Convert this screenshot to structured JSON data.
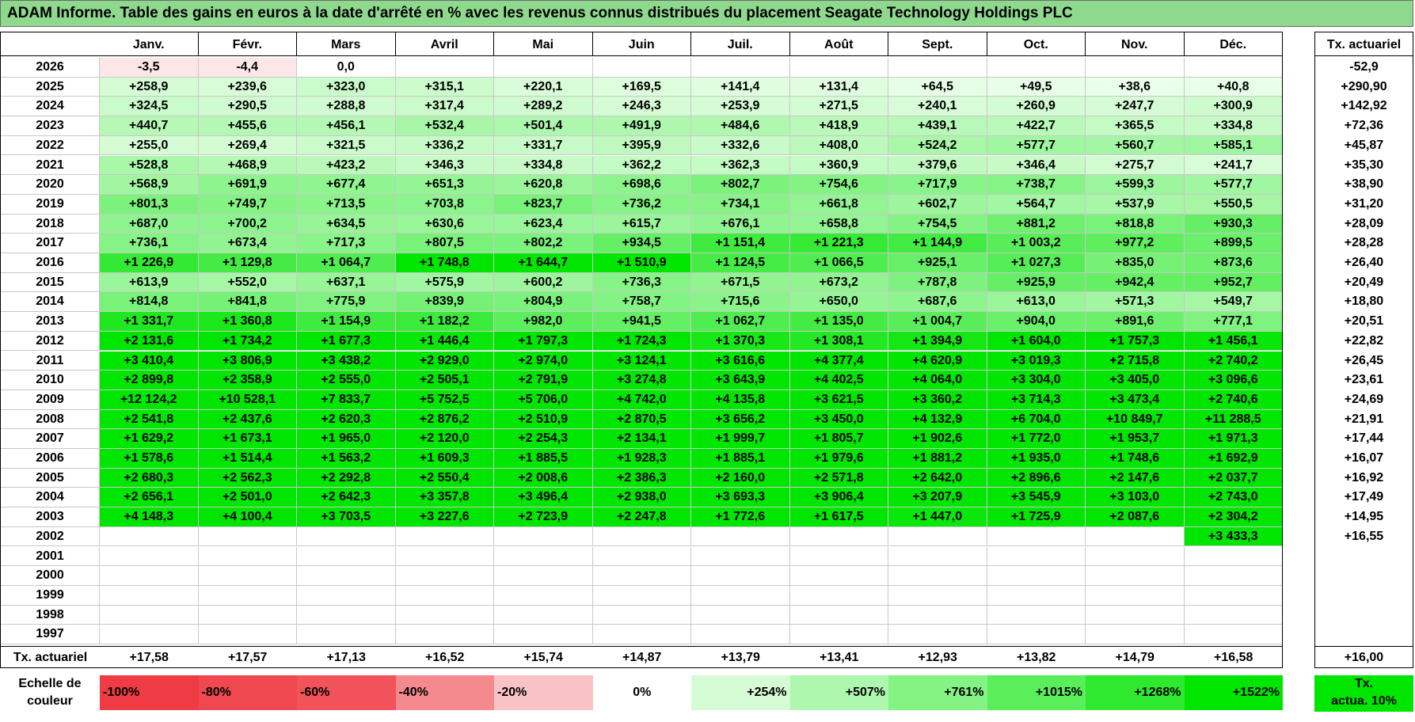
{
  "title": "ADAM Informe. Table des gains en euros à la date d'arrêté en % avec les revenus connus distribués du placement Seagate Technology Holdings PLC",
  "months": [
    "Janv.",
    "Févr.",
    "Mars",
    "Avril",
    "Mai",
    "Juin",
    "Juil.",
    "Août",
    "Sept.",
    "Oct.",
    "Nov.",
    "Déc."
  ],
  "tx_header": "Tx. actuariel",
  "rows": [
    {
      "year": "2026",
      "values": [
        "-3,5",
        "-4,4",
        "0,0",
        "",
        "",
        "",
        "",
        "",
        "",
        "",
        "",
        ""
      ],
      "tx": "-52,9"
    },
    {
      "year": "2025",
      "values": [
        "+258,9",
        "+239,6",
        "+323,0",
        "+315,1",
        "+220,1",
        "+169,5",
        "+141,4",
        "+131,4",
        "+64,5",
        "+49,5",
        "+38,6",
        "+40,8"
      ],
      "tx": "+290,90"
    },
    {
      "year": "2024",
      "values": [
        "+324,5",
        "+290,5",
        "+288,8",
        "+317,4",
        "+289,2",
        "+246,3",
        "+253,9",
        "+271,5",
        "+240,1",
        "+260,9",
        "+247,7",
        "+300,9"
      ],
      "tx": "+142,92"
    },
    {
      "year": "2023",
      "values": [
        "+440,7",
        "+455,6",
        "+456,1",
        "+532,4",
        "+501,4",
        "+491,9",
        "+484,6",
        "+418,9",
        "+439,1",
        "+422,7",
        "+365,5",
        "+334,8"
      ],
      "tx": "+72,36"
    },
    {
      "year": "2022",
      "values": [
        "+255,0",
        "+269,4",
        "+321,5",
        "+336,2",
        "+331,7",
        "+395,9",
        "+332,6",
        "+408,0",
        "+524,2",
        "+577,7",
        "+560,7",
        "+585,1"
      ],
      "tx": "+45,87"
    },
    {
      "year": "2021",
      "values": [
        "+528,8",
        "+468,9",
        "+423,2",
        "+346,3",
        "+334,8",
        "+362,2",
        "+362,3",
        "+360,9",
        "+379,6",
        "+346,4",
        "+275,7",
        "+241,7"
      ],
      "tx": "+35,30"
    },
    {
      "year": "2020",
      "values": [
        "+568,9",
        "+691,9",
        "+677,4",
        "+651,3",
        "+620,8",
        "+698,6",
        "+802,7",
        "+754,6",
        "+717,9",
        "+738,7",
        "+599,3",
        "+577,7"
      ],
      "tx": "+38,90"
    },
    {
      "year": "2019",
      "values": [
        "+801,3",
        "+749,7",
        "+713,5",
        "+703,8",
        "+823,7",
        "+736,2",
        "+734,1",
        "+661,8",
        "+602,7",
        "+564,7",
        "+537,9",
        "+550,5"
      ],
      "tx": "+31,20"
    },
    {
      "year": "2018",
      "values": [
        "+687,0",
        "+700,2",
        "+634,5",
        "+630,6",
        "+623,4",
        "+615,7",
        "+676,1",
        "+658,8",
        "+754,5",
        "+881,2",
        "+818,8",
        "+930,3"
      ],
      "tx": "+28,09"
    },
    {
      "year": "2017",
      "values": [
        "+736,1",
        "+673,4",
        "+717,3",
        "+807,5",
        "+802,2",
        "+934,5",
        "+1 151,4",
        "+1 221,3",
        "+1 144,9",
        "+1 003,2",
        "+977,2",
        "+899,5"
      ],
      "tx": "+28,28"
    },
    {
      "year": "2016",
      "values": [
        "+1 226,9",
        "+1 129,8",
        "+1 064,7",
        "+1 748,8",
        "+1 644,7",
        "+1 510,9",
        "+1 124,5",
        "+1 066,5",
        "+925,1",
        "+1 027,3",
        "+835,0",
        "+873,6"
      ],
      "tx": "+26,40"
    },
    {
      "year": "2015",
      "values": [
        "+613,9",
        "+552,0",
        "+637,1",
        "+575,9",
        "+600,2",
        "+736,3",
        "+671,5",
        "+673,2",
        "+787,8",
        "+925,9",
        "+942,4",
        "+952,7"
      ],
      "tx": "+20,49"
    },
    {
      "year": "2014",
      "values": [
        "+814,8",
        "+841,8",
        "+775,9",
        "+839,9",
        "+804,9",
        "+758,7",
        "+715,6",
        "+650,0",
        "+687,6",
        "+613,0",
        "+571,3",
        "+549,7"
      ],
      "tx": "+18,80"
    },
    {
      "year": "2013",
      "values": [
        "+1 331,7",
        "+1 360,8",
        "+1 154,9",
        "+1 182,2",
        "+982,0",
        "+941,5",
        "+1 062,7",
        "+1 135,0",
        "+1 004,7",
        "+904,0",
        "+891,6",
        "+777,1"
      ],
      "tx": "+20,51"
    },
    {
      "year": "2012",
      "values": [
        "+2 131,6",
        "+1 734,2",
        "+1 677,3",
        "+1 446,4",
        "+1 797,3",
        "+1 724,3",
        "+1 370,3",
        "+1 308,1",
        "+1 394,9",
        "+1 604,0",
        "+1 757,3",
        "+1 456,1"
      ],
      "tx": "+22,82"
    },
    {
      "year": "2011",
      "values": [
        "+3 410,4",
        "+3 806,9",
        "+3 438,2",
        "+2 929,0",
        "+2 974,0",
        "+3 124,1",
        "+3 616,6",
        "+4 377,4",
        "+4 620,9",
        "+3 019,3",
        "+2 715,8",
        "+2 740,2"
      ],
      "tx": "+26,45"
    },
    {
      "year": "2010",
      "values": [
        "+2 899,8",
        "+2 358,9",
        "+2 555,0",
        "+2 505,1",
        "+2 791,9",
        "+3 274,8",
        "+3 643,9",
        "+4 402,5",
        "+4 064,0",
        "+3 304,0",
        "+3 405,0",
        "+3 096,6"
      ],
      "tx": "+23,61"
    },
    {
      "year": "2009",
      "values": [
        "+12 124,2",
        "+10 528,1",
        "+7 833,7",
        "+5 752,5",
        "+5 706,0",
        "+4 742,0",
        "+4 135,8",
        "+3 621,5",
        "+3 360,2",
        "+3 714,3",
        "+3 473,4",
        "+2 740,6"
      ],
      "tx": "+24,69"
    },
    {
      "year": "2008",
      "values": [
        "+2 541,8",
        "+2 437,6",
        "+2 620,3",
        "+2 876,2",
        "+2 510,9",
        "+2 870,5",
        "+3 656,2",
        "+3 450,0",
        "+4 132,9",
        "+6 704,0",
        "+10 849,7",
        "+11 288,5"
      ],
      "tx": "+21,91"
    },
    {
      "year": "2007",
      "values": [
        "+1 629,2",
        "+1 673,1",
        "+1 965,0",
        "+2 120,0",
        "+2 254,3",
        "+2 134,1",
        "+1 999,7",
        "+1 805,7",
        "+1 902,6",
        "+1 772,0",
        "+1 953,7",
        "+1 971,3"
      ],
      "tx": "+17,44"
    },
    {
      "year": "2006",
      "values": [
        "+1 578,6",
        "+1 514,4",
        "+1 563,2",
        "+1 609,3",
        "+1 885,5",
        "+1 928,3",
        "+1 885,1",
        "+1 979,6",
        "+1 881,2",
        "+1 935,0",
        "+1 748,6",
        "+1 692,9"
      ],
      "tx": "+16,07"
    },
    {
      "year": "2005",
      "values": [
        "+2 680,3",
        "+2 562,3",
        "+2 292,8",
        "+2 550,4",
        "+2 008,6",
        "+2 386,3",
        "+2 160,0",
        "+2 571,8",
        "+2 642,0",
        "+2 896,6",
        "+2 147,6",
        "+2 037,7"
      ],
      "tx": "+16,92"
    },
    {
      "year": "2004",
      "values": [
        "+2 656,1",
        "+2 501,0",
        "+2 642,3",
        "+3 357,8",
        "+3 496,4",
        "+2 938,0",
        "+3 693,3",
        "+3 906,4",
        "+3 207,9",
        "+3 545,9",
        "+3 103,0",
        "+2 743,0"
      ],
      "tx": "+17,49"
    },
    {
      "year": "2003",
      "values": [
        "+4 148,3",
        "+4 100,4",
        "+3 703,5",
        "+3 227,6",
        "+2 723,9",
        "+2 247,8",
        "+1 772,6",
        "+1 617,5",
        "+1 447,0",
        "+1 725,9",
        "+2 087,6",
        "+2 304,2"
      ],
      "tx": "+14,95"
    },
    {
      "year": "2002",
      "values": [
        "",
        "",
        "",
        "",
        "",
        "",
        "",
        "",
        "",
        "",
        "",
        "+3 433,3"
      ],
      "tx": "+16,55"
    },
    {
      "year": "2001",
      "values": [
        "",
        "",
        "",
        "",
        "",
        "",
        "",
        "",
        "",
        "",
        "",
        ""
      ],
      "tx": ""
    },
    {
      "year": "2000",
      "values": [
        "",
        "",
        "",
        "",
        "",
        "",
        "",
        "",
        "",
        "",
        "",
        ""
      ],
      "tx": ""
    },
    {
      "year": "1999",
      "values": [
        "",
        "",
        "",
        "",
        "",
        "",
        "",
        "",
        "",
        "",
        "",
        ""
      ],
      "tx": ""
    },
    {
      "year": "1998",
      "values": [
        "",
        "",
        "",
        "",
        "",
        "",
        "",
        "",
        "",
        "",
        "",
        ""
      ],
      "tx": ""
    },
    {
      "year": "1997",
      "values": [
        "",
        "",
        "",
        "",
        "",
        "",
        "",
        "",
        "",
        "",
        "",
        ""
      ],
      "tx": ""
    }
  ],
  "footer": {
    "label": "Tx. actuariel",
    "values": [
      "+17,58",
      "+17,57",
      "+17,13",
      "+16,52",
      "+15,74",
      "+14,87",
      "+13,79",
      "+13,41",
      "+12,93",
      "+13,82",
      "+14,79",
      "+16,58"
    ],
    "total": "+16,00"
  },
  "legend": {
    "label_line1": "Echelle de",
    "label_line2": "couleur",
    "items": [
      {
        "text": "-100%",
        "color": "#ee3b44"
      },
      {
        "text": "-80%",
        "color": "#f04850"
      },
      {
        "text": "-60%",
        "color": "#f2525a"
      },
      {
        "text": "-40%",
        "color": "#f58a8e"
      },
      {
        "text": "-20%",
        "color": "#f9c3c5"
      },
      {
        "text": "0%",
        "color": "#ffffff"
      },
      {
        "text": "+254%",
        "color": "#d6fcd6"
      },
      {
        "text": "+507%",
        "color": "#aef7ae"
      },
      {
        "text": "+761%",
        "color": "#84f384"
      },
      {
        "text": "+1015%",
        "color": "#5aee5a"
      },
      {
        "text": "+1268%",
        "color": "#2fe92f"
      },
      {
        "text": "+1522%",
        "color": "#00e600"
      }
    ],
    "tx_line1": "Tx.",
    "tx_line2": "actua. 10%"
  },
  "colors": {
    "title_bg": "#8ed98e",
    "negative": "#fde6e7",
    "empty": "#ffffff"
  }
}
